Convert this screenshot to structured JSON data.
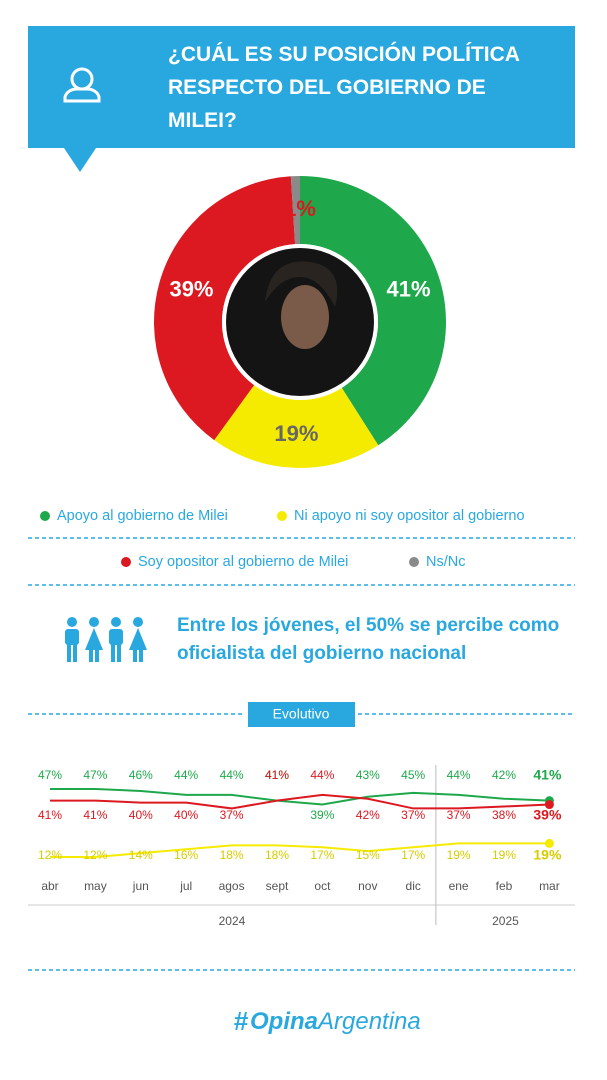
{
  "header": {
    "title": "¿CUÁL ES SU POSICIÓN POLÍTICA RESPECTO DEL GOBIERNO DE MILEI?"
  },
  "chart_data": [
    {
      "type": "pie",
      "donut": true,
      "categories": [
        "Apoyo al gobierno de Milei",
        "Ni apoyo ni soy opositor al gobierno",
        "Soy opositor al gobierno de Milei",
        "Ns/Nc"
      ],
      "values": [
        41,
        19,
        39,
        1
      ],
      "value_labels": [
        "41%",
        "19%",
        "39%",
        "1%"
      ],
      "colors": [
        "#1ea84b",
        "#f5eb00",
        "#dc1820",
        "#8a8a8a"
      ]
    },
    {
      "type": "line",
      "title": "Evolutivo",
      "categories": [
        "abr",
        "may",
        "jun",
        "jul",
        "agos",
        "sept",
        "oct",
        "nov",
        "dic",
        "ene",
        "feb",
        "mar"
      ],
      "groups": [
        {
          "label": "2024",
          "count": 9
        },
        {
          "label": "2025",
          "count": 3
        }
      ],
      "series": [
        {
          "color": "#1ea84b",
          "values": [
            47,
            47,
            46,
            44,
            44,
            41,
            39,
            43,
            45,
            44,
            42,
            41
          ],
          "value_labels": [
            "47%",
            "47%",
            "46%",
            "44%",
            "44%",
            "41%",
            "39%",
            "43%",
            "45%",
            "44%",
            "42%",
            "41%"
          ]
        },
        {
          "color": "#dc1820",
          "values": [
            41,
            41,
            40,
            40,
            37,
            41,
            44,
            42,
            37,
            37,
            38,
            39
          ],
          "value_labels": [
            "41%",
            "41%",
            "40%",
            "40%",
            "37%",
            "41%",
            "44%",
            "42%",
            "37%",
            "37%",
            "38%",
            "39%"
          ]
        },
        {
          "color": "#f5eb00",
          "values": [
            12,
            12,
            14,
            16,
            18,
            18,
            17,
            15,
            17,
            19,
            19,
            19
          ],
          "value_labels": [
            "12%",
            "12%",
            "14%",
            "16%",
            "18%",
            "18%",
            "17%",
            "15%",
            "17%",
            "19%",
            "19%",
            "19%"
          ]
        }
      ]
    }
  ],
  "callout": "Entre los jóvenes, el 50% se percibe como oficialista del gobierno nacional",
  "logo": {
    "hash": "#",
    "bold": "Opina",
    "rest": "Argentina"
  }
}
